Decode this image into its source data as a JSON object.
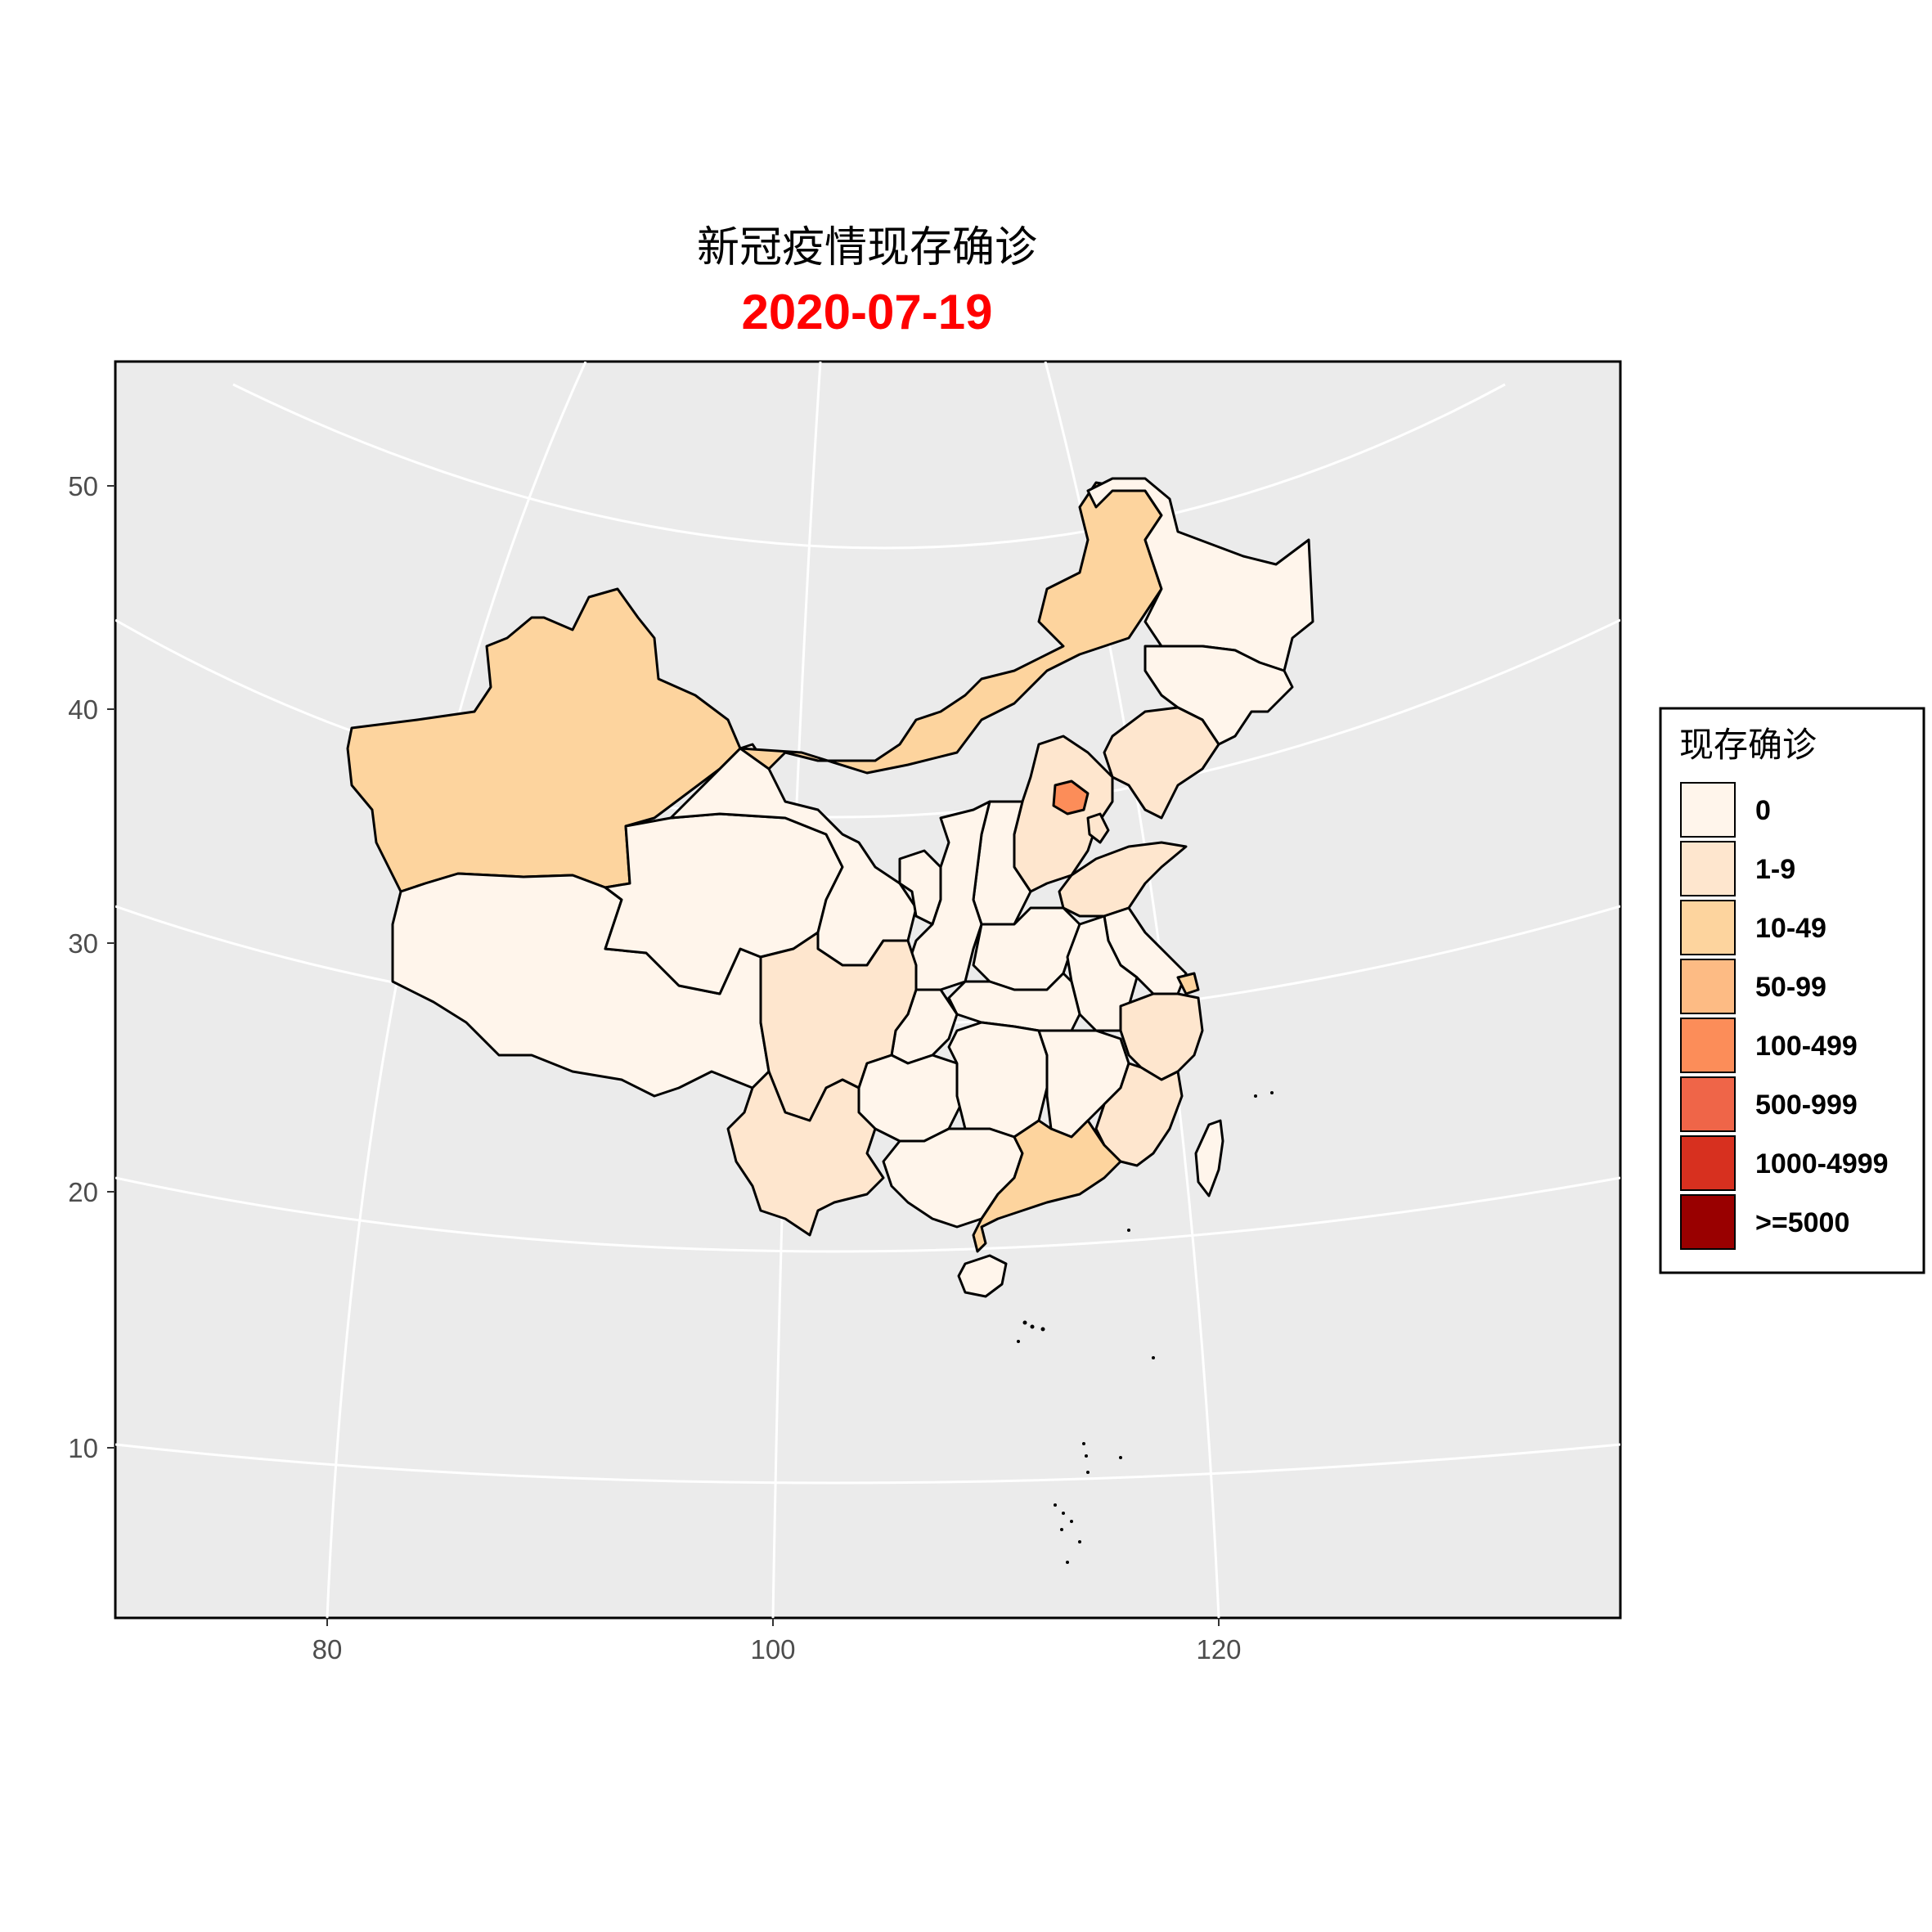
{
  "title": "新冠疫情现存确诊",
  "subtitle": "2020-07-19",
  "colors": {
    "panel_bg": "#ebebeb",
    "subtitle": "#ff0000",
    "grid": "#ffffff"
  },
  "axes": {
    "x_ticks": [
      "80",
      "100",
      "120"
    ],
    "y_ticks": [
      "50",
      "40",
      "30",
      "20",
      "10"
    ]
  },
  "legend": {
    "title": "现存确诊",
    "items": [
      {
        "label": "0",
        "color": "#fff5eb"
      },
      {
        "label": "1-9",
        "color": "#fee6ce"
      },
      {
        "label": "10-49",
        "color": "#fdd49e"
      },
      {
        "label": "50-99",
        "color": "#fdbb84"
      },
      {
        "label": "100-499",
        "color": "#fc8d59"
      },
      {
        "label": "500-999",
        "color": "#ef6548"
      },
      {
        "label": "1000-4999",
        "color": "#d7301f"
      },
      {
        "label": ">=5000",
        "color": "#990000"
      }
    ]
  },
  "chart_data": {
    "type": "choropleth",
    "map": "China provinces",
    "metric": "现存确诊",
    "xlim": [
      70,
      138
    ],
    "ylim": [
      3,
      55
    ],
    "category_by_region": {
      "北京": "100-499",
      "新疆": "10-49",
      "内蒙古": "10-49",
      "广东": "10-49",
      "四川": "1-9",
      "云南": "1-9",
      "河北": "1-9",
      "辽宁": "1-9",
      "山东": "1-9",
      "浙江": "1-9",
      "福建": "1-9",
      "上海": "10-49",
      "天津": "1-9",
      "西藏": "0",
      "青海": "0",
      "甘肃": "0",
      "宁夏": "0",
      "陕西": "0",
      "山西": "0",
      "黑龙江": "0",
      "吉林": "0",
      "河南": "0",
      "湖北": "0",
      "湖南": "0",
      "江西": "0",
      "安徽": "0",
      "江苏": "0",
      "重庆": "0",
      "贵州": "0",
      "广西": "0",
      "海南": "0",
      "台湾": "0"
    }
  }
}
